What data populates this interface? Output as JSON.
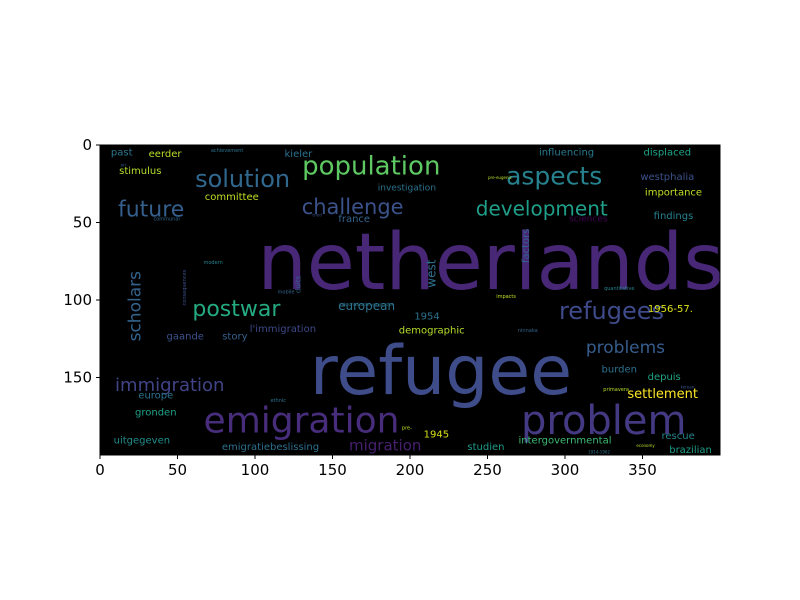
{
  "chart_data": {
    "type": "wordcloud",
    "title": "",
    "xlabel": "",
    "ylabel": "",
    "xlim": [
      0,
      400
    ],
    "ylim": [
      200,
      0
    ],
    "xticks": [
      0,
      50,
      100,
      150,
      200,
      250,
      300,
      350
    ],
    "yticks": [
      0,
      50,
      100,
      150
    ],
    "grid": false,
    "background": "#000000",
    "words": [
      {
        "text": "netherlands",
        "x": 252,
        "y": 76,
        "size": 78,
        "color": "#482777"
      },
      {
        "text": "refugee",
        "x": 220,
        "y": 146,
        "size": 68,
        "color": "#3e4c8a"
      },
      {
        "text": "emigration",
        "x": 130,
        "y": 178,
        "size": 36,
        "color": "#472d7b"
      },
      {
        "text": "problem",
        "x": 325,
        "y": 178,
        "size": 40,
        "color": "#443983"
      },
      {
        "text": "population",
        "x": 175,
        "y": 14,
        "size": 26,
        "color": "#5ec962"
      },
      {
        "text": "solution",
        "x": 92,
        "y": 22,
        "size": 24,
        "color": "#31688e"
      },
      {
        "text": "aspects",
        "x": 293,
        "y": 20,
        "size": 25,
        "color": "#26828e"
      },
      {
        "text": "challenge",
        "x": 163,
        "y": 40,
        "size": 21,
        "color": "#3b528b"
      },
      {
        "text": "development",
        "x": 285,
        "y": 41,
        "size": 20,
        "color": "#1f9e89"
      },
      {
        "text": "future",
        "x": 33,
        "y": 42,
        "size": 22,
        "color": "#355f8d"
      },
      {
        "text": "postwar",
        "x": 88,
        "y": 106,
        "size": 22,
        "color": "#25ab82"
      },
      {
        "text": "refugees",
        "x": 330,
        "y": 107,
        "size": 24,
        "color": "#3e4a89"
      },
      {
        "text": "problems",
        "x": 339,
        "y": 131,
        "size": 17,
        "color": "#365d8d"
      },
      {
        "text": "immigration",
        "x": 45,
        "y": 155,
        "size": 18,
        "color": "#414487"
      },
      {
        "text": "scholars",
        "x": 23,
        "y": 104,
        "size": 17,
        "color": "#33638d",
        "rotate": -90
      },
      {
        "text": "migration",
        "x": 184,
        "y": 194,
        "size": 15,
        "color": "#481f70"
      },
      {
        "text": "european",
        "x": 172,
        "y": 104,
        "size": 12,
        "color": "#2c728e"
      },
      {
        "text": "west",
        "x": 214,
        "y": 83,
        "size": 12,
        "color": "#2d708e",
        "rotate": -90
      },
      {
        "text": "factors",
        "x": 275,
        "y": 65,
        "size": 10,
        "color": "#32658e",
        "rotate": -90
      },
      {
        "text": "settlement",
        "x": 363,
        "y": 161,
        "size": 13,
        "color": "#fde725"
      },
      {
        "text": "1956-57.",
        "x": 368,
        "y": 106,
        "size": 10,
        "color": "#dde318"
      },
      {
        "text": "demographic",
        "x": 214,
        "y": 120,
        "size": 10,
        "color": "#b5de2b"
      },
      {
        "text": "1945",
        "x": 217,
        "y": 187,
        "size": 10,
        "color": "#d8e219"
      },
      {
        "text": "1954",
        "x": 211,
        "y": 111,
        "size": 10,
        "color": "#2c728e"
      },
      {
        "text": "past",
        "x": 14,
        "y": 5,
        "size": 10,
        "color": "#2a788e"
      },
      {
        "text": "eerder",
        "x": 42,
        "y": 6,
        "size": 10,
        "color": "#b8de29"
      },
      {
        "text": "kieler",
        "x": 128,
        "y": 6,
        "size": 10,
        "color": "#2c728e"
      },
      {
        "text": "influencing",
        "x": 301,
        "y": 5,
        "size": 10,
        "color": "#2a788e"
      },
      {
        "text": "displaced",
        "x": 366,
        "y": 5,
        "size": 10,
        "color": "#20a386"
      },
      {
        "text": "stimulus",
        "x": 26,
        "y": 17,
        "size": 10,
        "color": "#b5de2b"
      },
      {
        "text": "investigation",
        "x": 198,
        "y": 28,
        "size": 9,
        "color": "#2c728e"
      },
      {
        "text": "westphalia",
        "x": 366,
        "y": 21,
        "size": 10,
        "color": "#3b528b"
      },
      {
        "text": "importance",
        "x": 370,
        "y": 31,
        "size": 10,
        "color": "#bddf26"
      },
      {
        "text": "committee",
        "x": 85,
        "y": 34,
        "size": 10,
        "color": "#c2df23"
      },
      {
        "text": "findings",
        "x": 370,
        "y": 46,
        "size": 10,
        "color": "#26828e"
      },
      {
        "text": "france",
        "x": 164,
        "y": 48,
        "size": 10,
        "color": "#33638d"
      },
      {
        "text": "sciences",
        "x": 315,
        "y": 48,
        "size": 9,
        "color": "#440154"
      },
      {
        "text": "gaande",
        "x": 55,
        "y": 124,
        "size": 10,
        "color": "#3b528b"
      },
      {
        "text": "story",
        "x": 87,
        "y": 124,
        "size": 10,
        "color": "#35608d"
      },
      {
        "text": "l'immigration",
        "x": 118,
        "y": 119,
        "size": 10,
        "color": "#3e4989"
      },
      {
        "text": "burden",
        "x": 335,
        "y": 145,
        "size": 10,
        "color": "#2c728e"
      },
      {
        "text": "depuis",
        "x": 364,
        "y": 150,
        "size": 10,
        "color": "#20a486"
      },
      {
        "text": "europe",
        "x": 36,
        "y": 162,
        "size": 10,
        "color": "#2c728e"
      },
      {
        "text": "gronden",
        "x": 36,
        "y": 173,
        "size": 10,
        "color": "#1fa088"
      },
      {
        "text": "uitgegeven",
        "x": 27,
        "y": 191,
        "size": 10,
        "color": "#218f8d"
      },
      {
        "text": "emigratiebeslissing",
        "x": 110,
        "y": 195,
        "size": 10,
        "color": "#2d708e"
      },
      {
        "text": "studien",
        "x": 249,
        "y": 195,
        "size": 10,
        "color": "#1e9c89"
      },
      {
        "text": "intergovernmental",
        "x": 300,
        "y": 191,
        "size": 10,
        "color": "#3dbc74"
      },
      {
        "text": "rescue",
        "x": 373,
        "y": 188,
        "size": 10,
        "color": "#26828e"
      },
      {
        "text": "brazilian",
        "x": 381,
        "y": 197,
        "size": 10,
        "color": "#1f9e89"
      },
      {
        "text": "duits",
        "x": 128,
        "y": 90,
        "size": 7,
        "color": "#33638d",
        "rotate": -90
      },
      {
        "text": "achievement",
        "x": 82,
        "y": 4,
        "size": 5,
        "color": "#2c728e"
      },
      {
        "text": "ori",
        "x": 15,
        "y": 13,
        "size": 4,
        "color": "#33638d"
      },
      {
        "text": "communal",
        "x": 43,
        "y": 48,
        "size": 5,
        "color": "#31688e"
      },
      {
        "text": "tried",
        "x": 140,
        "y": 45,
        "size": 4,
        "color": "#3b528b"
      },
      {
        "text": "modern",
        "x": 73,
        "y": 76,
        "size": 5,
        "color": "#26828e"
      },
      {
        "text": "mobile",
        "x": 120,
        "y": 95,
        "size": 5,
        "color": "#33638d"
      },
      {
        "text": "consequences",
        "x": 55,
        "y": 92,
        "size": 5,
        "color": "#3b528b",
        "rotate": -90
      },
      {
        "text": "quantitative",
        "x": 335,
        "y": 93,
        "size": 5,
        "color": "#26828e"
      },
      {
        "text": "impacts",
        "x": 262,
        "y": 98,
        "size": 5,
        "color": "#c2df23"
      },
      {
        "text": "ninnaka",
        "x": 276,
        "y": 120,
        "size": 5,
        "color": "#33638d"
      },
      {
        "text": "industrialisation-emigration",
        "x": 172,
        "y": 103,
        "size": 4,
        "color": "#2c728e"
      },
      {
        "text": "pre-eugenic",
        "x": 258,
        "y": 21,
        "size": 4,
        "color": "#b8de29"
      },
      {
        "text": "ethnic",
        "x": 115,
        "y": 165,
        "size": 5,
        "color": "#2c728e"
      },
      {
        "text": "primavera",
        "x": 333,
        "y": 158,
        "size": 5,
        "color": "#b5de2b"
      },
      {
        "text": "pre-",
        "x": 198,
        "y": 183,
        "size": 5,
        "color": "#c2df23"
      },
      {
        "text": "korean",
        "x": 379,
        "y": 156,
        "size": 4,
        "color": "#3b528b"
      },
      {
        "text": "economy",
        "x": 352,
        "y": 194,
        "size": 4,
        "color": "#b5de2b"
      },
      {
        "text": "1914-1962",
        "x": 322,
        "y": 198,
        "size": 4,
        "color": "#2c728e"
      }
    ]
  }
}
